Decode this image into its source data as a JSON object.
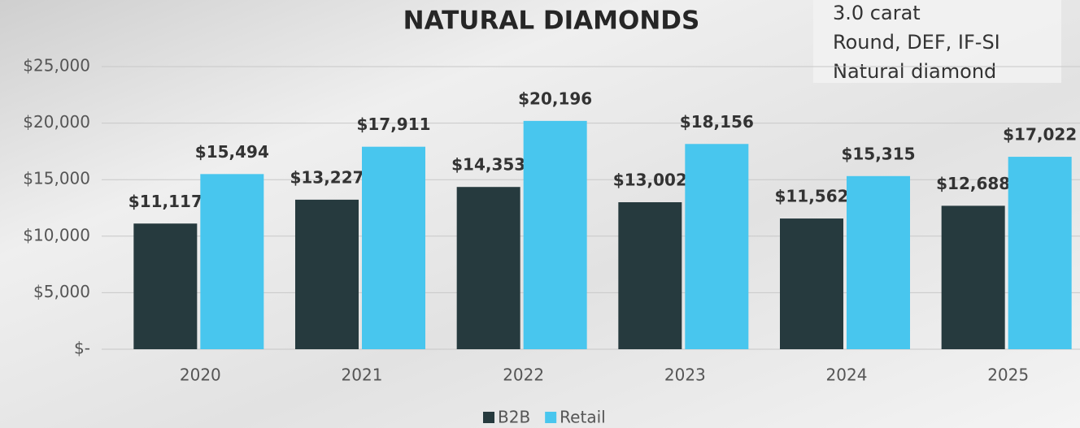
{
  "chart_data": {
    "type": "bar",
    "title": "NATURAL DIAMONDS",
    "annotations": [
      "3.0 carat",
      "Round, DEF, IF-SI",
      "Natural diamond"
    ],
    "categories": [
      "2020",
      "2021",
      "2022",
      "2023",
      "2024",
      "2025"
    ],
    "series": [
      {
        "name": "B2B",
        "color": "#263a3e",
        "values": [
          11117,
          13227,
          14353,
          13002,
          11562,
          12688
        ],
        "value_labels": [
          "$11,117",
          "$13,227",
          "$14,353",
          "$13,002",
          "$11,562",
          "$12,688"
        ]
      },
      {
        "name": "Retail",
        "color": "#48c6ee",
        "values": [
          15494,
          17911,
          20196,
          18156,
          15315,
          17022
        ],
        "value_labels": [
          "$15,494",
          "$17,911",
          "$20,196",
          "$18,156",
          "$15,315",
          "$17,022"
        ]
      }
    ],
    "ylim": [
      0,
      25000
    ],
    "yticks": [
      {
        "value": 0,
        "label": "$-"
      },
      {
        "value": 5000,
        "label": "$5,000"
      },
      {
        "value": 10000,
        "label": "$10,000"
      },
      {
        "value": 15000,
        "label": "$15,000"
      },
      {
        "value": 20000,
        "label": "$20,000"
      },
      {
        "value": 25000,
        "label": "$25,000"
      }
    ],
    "grid": true,
    "legend": "bottom"
  }
}
